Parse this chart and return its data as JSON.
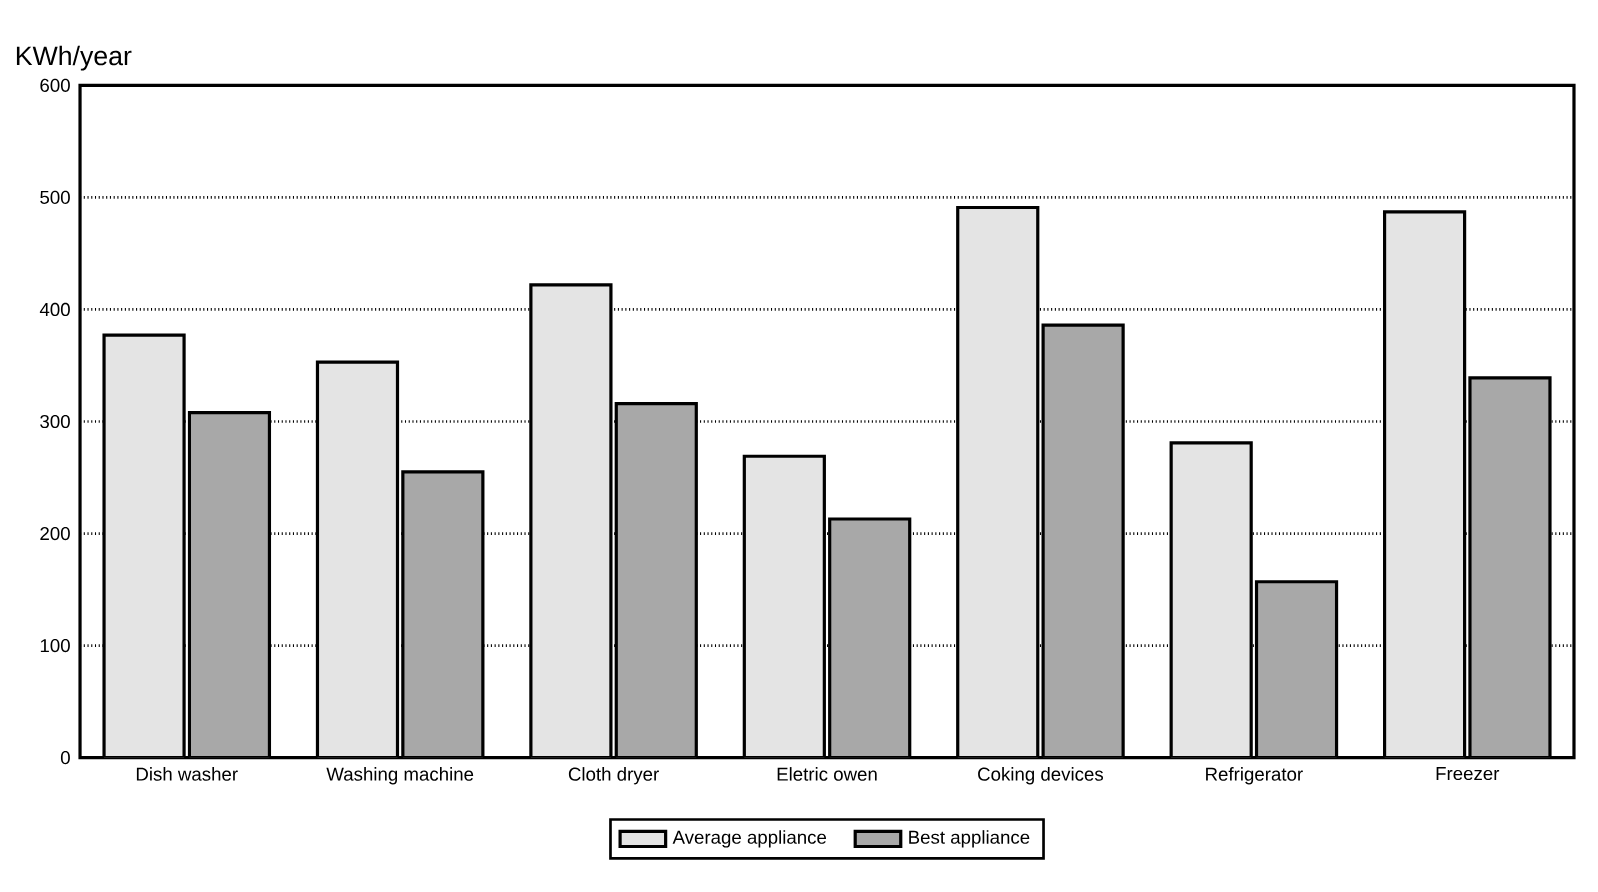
{
  "chart_data": {
    "type": "bar",
    "ylabel": "KWh/year",
    "categories": [
      "Dish washer",
      "Washing machine",
      "Cloth dryer",
      "Eletric owen",
      "Coking devices",
      "Refrigerator",
      "Freezer"
    ],
    "series": [
      {
        "name": "Average appliance",
        "color": "#e4e4e4",
        "values": [
          377,
          353,
          422,
          269,
          491,
          281,
          487
        ]
      },
      {
        "name": "Best appliance",
        "color": "#a8a8a8",
        "values": [
          308,
          255,
          316,
          213,
          386,
          157,
          339
        ]
      }
    ],
    "ylim": [
      0,
      600
    ],
    "yticks": [
      0,
      100,
      200,
      300,
      400,
      500,
      600
    ],
    "grid": "y",
    "legend": "bottom"
  }
}
